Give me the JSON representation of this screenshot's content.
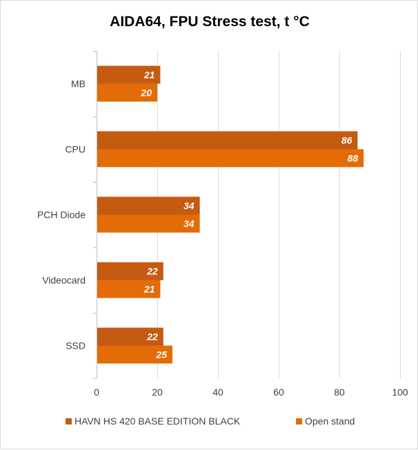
{
  "chart_data": {
    "type": "bar",
    "orientation": "horizontal",
    "title": "AIDA64, FPU Stress test, t °C",
    "categories": [
      "MB",
      "CPU",
      "PCH Diode",
      "Videocard",
      "SSD"
    ],
    "series": [
      {
        "name": "HAVN HS 420 BASE EDITION BLACK",
        "color": "#c55a11",
        "values": [
          21,
          86,
          34,
          22,
          22
        ]
      },
      {
        "name": "Open stand",
        "color": "#e36c09",
        "values": [
          20,
          88,
          34,
          21,
          25
        ]
      }
    ],
    "xlim": [
      0,
      100
    ],
    "xticks": [
      0,
      20,
      40,
      60,
      80,
      100
    ],
    "grid": true,
    "legend_position": "bottom"
  }
}
